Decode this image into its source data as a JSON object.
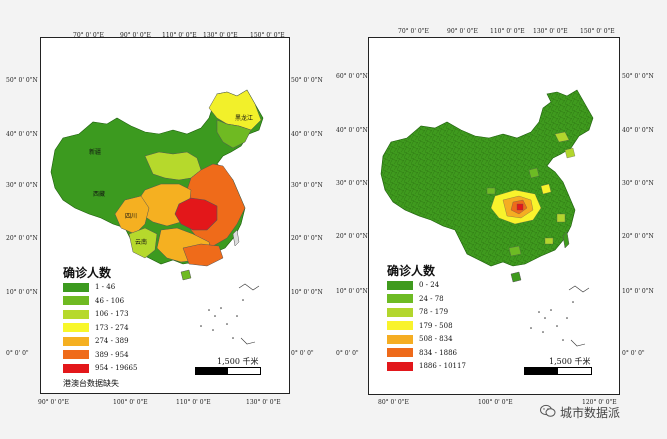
{
  "left_map": {
    "legend_title": "确诊人数",
    "legend": [
      {
        "label": "1 - 46",
        "color": "#3c9a1f"
      },
      {
        "label": "46 - 106",
        "color": "#6fba22"
      },
      {
        "label": "106 - 173",
        "color": "#b6d92c"
      },
      {
        "label": "173 - 274",
        "color": "#f8f72a"
      },
      {
        "label": "274 - 389",
        "color": "#f5b021"
      },
      {
        "label": "389 - 954",
        "color": "#ef6b1a"
      },
      {
        "label": "954 - 19665",
        "color": "#e3171a"
      }
    ],
    "note": "港澳台数据缺失",
    "scale_label": "1,500 千米",
    "top_ticks": [
      "70° 0' 0\"E",
      "90° 0' 0\"E",
      "110° 0' 0\"E",
      "130° 0' 0\"E",
      "150° 0' 0\"E"
    ],
    "bottom_ticks": [
      "90° 0' 0\"E",
      "100° 0' 0\"E",
      "110° 0' 0\"E",
      "130° 0' 0\"E"
    ],
    "left_ticks": [
      "50° 0' 0\"N",
      "40° 0' 0\"N",
      "30° 0' 0\"N",
      "20° 0' 0\"N",
      "10° 0' 0\"N",
      "0° 0' 0\""
    ],
    "right_ticks": [
      "50° 0' 0\"N",
      "40° 0' 0\"N",
      "30° 0' 0\"N",
      "20° 0' 0\"N",
      "10° 0' 0\"N",
      "0° 0' 0\""
    ],
    "place_labels": [
      "黑龙江",
      "新疆",
      "西藏",
      "四川",
      "云南"
    ]
  },
  "right_map": {
    "legend_title": "确诊人数",
    "legend": [
      {
        "label": "0 - 24",
        "color": "#3f9a1e"
      },
      {
        "label": "24 - 78",
        "color": "#6dbb24"
      },
      {
        "label": "78 - 179",
        "color": "#b2d62d"
      },
      {
        "label": "179 - 508",
        "color": "#f9f32c"
      },
      {
        "label": "508 - 834",
        "color": "#f5ad22"
      },
      {
        "label": "834 - 1886",
        "color": "#ee6a1a"
      },
      {
        "label": "1886 - 10117",
        "color": "#e2171b"
      }
    ],
    "scale_label": "1,500 千米",
    "top_ticks": [
      "70° 0' 0\"E",
      "90° 0' 0\"E",
      "110° 0' 0\"E",
      "130° 0' 0\"E",
      "150° 0' 0\"E"
    ],
    "bottom_ticks": [
      "80° 0' 0\"E",
      "100° 0' 0\"E",
      "120° 0' 0\"E"
    ],
    "left_ticks": [
      "60° 0' 0\"N",
      "40° 0' 0\"N",
      "30° 0' 0\"N",
      "20° 0' 0\"N",
      "10° 0' 0\"N",
      "0° 0' 0\""
    ],
    "right_ticks": [
      "50° 0' 0\"N",
      "40° 0' 0\"N",
      "30° 0' 0\"N",
      "20° 0' 0\"N",
      "10° 0' 0\"N",
      "0° 0' 0\""
    ]
  },
  "watermark": "城市数据派"
}
